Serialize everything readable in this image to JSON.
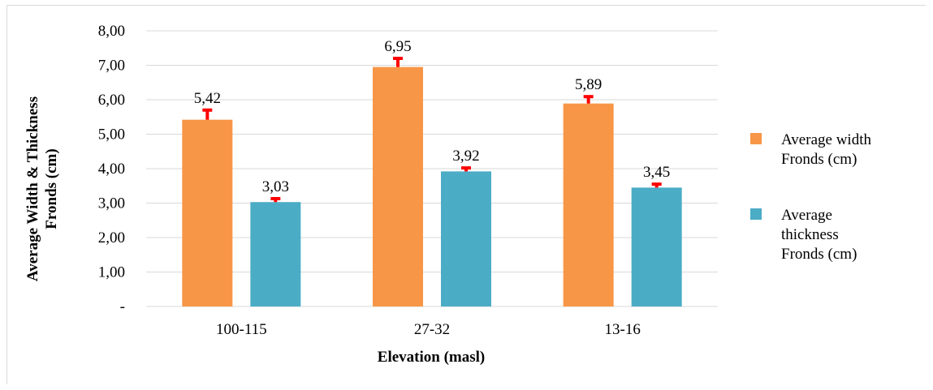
{
  "chart_data": {
    "type": "bar",
    "categories": [
      "100-115",
      "27-32",
      "13-16"
    ],
    "series": [
      {
        "name": "Average width Fronds (cm)",
        "name_lines": [
          "Average width",
          "Fronds (cm)"
        ],
        "values": [
          5.42,
          6.95,
          5.89
        ],
        "value_labels": [
          "5,42",
          "6,95",
          "5,89"
        ],
        "error": [
          0.28,
          0.25,
          0.2
        ],
        "color": "#f79646"
      },
      {
        "name": "Average thickness Fronds (cm)",
        "name_lines": [
          "Average",
          "thickness",
          "Fronds (cm)"
        ],
        "values": [
          3.03,
          3.92,
          3.45
        ],
        "value_labels": [
          "3,03",
          "3,92",
          "3,45"
        ],
        "error": [
          0.1,
          0.1,
          0.1
        ],
        "color": "#4bacc6"
      }
    ],
    "error_bar_color": "#ff0000",
    "ylim": [
      0,
      8
    ],
    "yticks": [
      0,
      1,
      2,
      3,
      4,
      5,
      6,
      7,
      8
    ],
    "ytick_labels": [
      "-",
      "1,00",
      "2,00",
      "3,00",
      "4,00",
      "5,00",
      "6,00",
      "7,00",
      "8,00"
    ],
    "xlabel": "Elevation (masl)",
    "ylabel_lines": [
      "Average Width & Thickness",
      "Fronds (cm)"
    ],
    "grid": true,
    "gridline_color": "#d9d9d9",
    "legend_position": "right"
  }
}
